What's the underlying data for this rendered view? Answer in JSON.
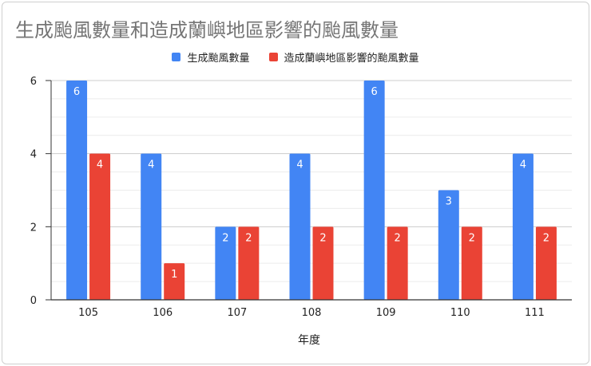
{
  "chart_data": {
    "type": "bar",
    "title": "生成颱風數量和造成蘭嶼地區影響的颱風數量",
    "xlabel": "年度",
    "ylabel": "",
    "categories": [
      "105",
      "106",
      "107",
      "108",
      "109",
      "110",
      "111"
    ],
    "series": [
      {
        "name": "生成颱風數量",
        "values": [
          6,
          4,
          2,
          4,
          6,
          3,
          4
        ],
        "color": "#4285f4"
      },
      {
        "name": "造成蘭嶼地區影響的颱風數量",
        "values": [
          4,
          1,
          2,
          2,
          2,
          2,
          2
        ],
        "color": "#ea4335"
      }
    ],
    "ylim": [
      0,
      6
    ],
    "yticks": [
      0,
      2,
      4,
      6
    ],
    "grid": true,
    "legend_position": "top",
    "data_labels": true
  }
}
